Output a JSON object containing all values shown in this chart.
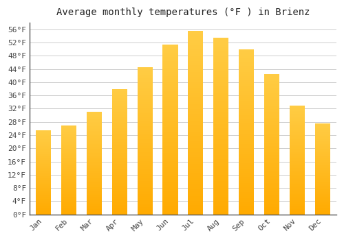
{
  "title": "Average monthly temperatures (°F ) in Brienz",
  "months": [
    "Jan",
    "Feb",
    "Mar",
    "Apr",
    "May",
    "Jun",
    "Jul",
    "Aug",
    "Sep",
    "Oct",
    "Nov",
    "Dec"
  ],
  "values": [
    25.5,
    27.0,
    31.0,
    38.0,
    44.5,
    51.5,
    55.5,
    53.5,
    50.0,
    42.5,
    33.0,
    27.5
  ],
  "bar_color_top": "#FFCC44",
  "bar_color_bottom": "#FFAA00",
  "ylim_min": 0,
  "ylim_max": 58,
  "ytick_start": 0,
  "ytick_end": 56,
  "ytick_step": 4,
  "background_color": "#ffffff",
  "grid_color": "#cccccc",
  "title_fontsize": 10,
  "tick_fontsize": 8,
  "bar_width": 0.6,
  "spine_color": "#555555"
}
